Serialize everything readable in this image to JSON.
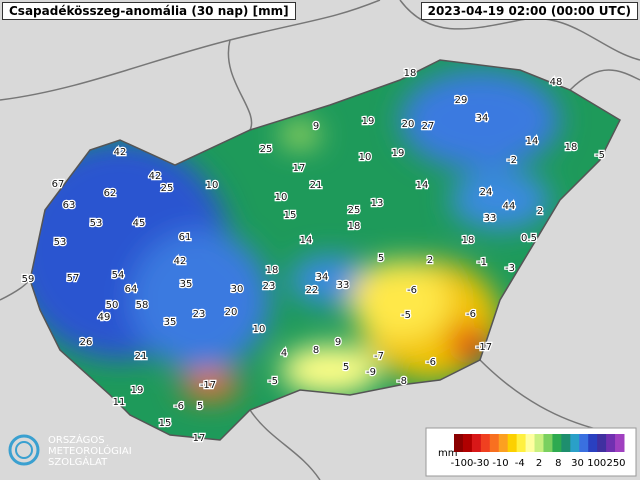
{
  "header": {
    "title": "Csapadékösszeg-anomália (30 nap) [mm]",
    "timestamp": "2023-04-19 02:00 (00:00 UTC)"
  },
  "stations": [
    18,
    48,
    29,
    34,
    9,
    19,
    20,
    27,
    14,
    18,
    -5,
    25,
    10,
    19,
    -2,
    42,
    42,
    17,
    21,
    14,
    67,
    62,
    25,
    10,
    10,
    24,
    63,
    44,
    53,
    45,
    15,
    25,
    13,
    2,
    33,
    18,
    53,
    61,
    14,
    18,
    0.5,
    42,
    5,
    2,
    -1,
    -3,
    57,
    54,
    18,
    59,
    64,
    35,
    34,
    23,
    30,
    22,
    33,
    -6,
    50,
    58,
    49,
    20,
    -5,
    -6,
    35,
    23,
    10,
    26,
    9,
    -17,
    4,
    8,
    -7,
    -6,
    21,
    5,
    -9,
    -8,
    -17,
    -5,
    19,
    11,
    -6,
    5,
    15,
    17
  ],
  "legend": {
    "unit": "mm",
    "labels": [
      "-100",
      "-30",
      "-10",
      "-4",
      "2",
      "8",
      "30",
      "100",
      "250"
    ],
    "colors": [
      "#8b0000",
      "#b00000",
      "#d81818",
      "#f04020",
      "#f87020",
      "#fca020",
      "#fcd000",
      "#fff040",
      "#ffffa0",
      "#c8f080",
      "#7ad060",
      "#2eaa50",
      "#1e8e6e",
      "#2aa0c8",
      "#3a70e0",
      "#2a40c0",
      "#4030a0",
      "#7030b0",
      "#a040c0"
    ]
  },
  "logo": [
    "ORSZÁGOS",
    "METEOROLÓGIAI",
    "SZOLGÁLAT"
  ]
}
